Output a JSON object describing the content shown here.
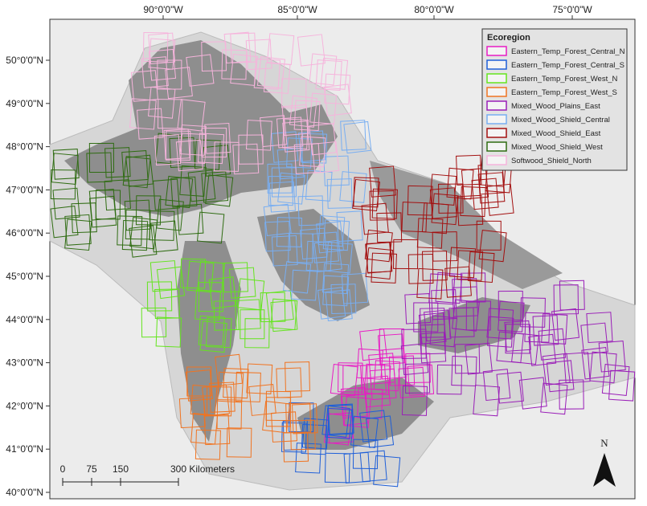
{
  "map": {
    "longitude_labels": [
      "90°0'0\"W",
      "85°0'0\"W",
      "80°0'0\"W",
      "75°0'0\"W"
    ],
    "latitude_labels": [
      "50°0'0\"N",
      "49°0'0\"N",
      "48°0'0\"N",
      "47°0'0\"N",
      "46°0'0\"N",
      "45°0'0\"N",
      "44°0'0\"N",
      "43°0'0\"N",
      "42°0'0\"N",
      "41°0'0\"N",
      "40°0'0\"N"
    ],
    "legend": {
      "title": "Ecoregion",
      "items": [
        {
          "name": "Eastern_Temp_Forest_Central_N",
          "color": "#e81cc4"
        },
        {
          "name": "Eastern_Temp_Forest_Central_S",
          "color": "#1f5fd8"
        },
        {
          "name": "Eastern_Temp_Forest_West_N",
          "color": "#64e41e"
        },
        {
          "name": "Eastern_Temp_Forest_West_S",
          "color": "#f07422"
        },
        {
          "name": "Mixed_Wood_Plains_East",
          "color": "#9a1eb8"
        },
        {
          "name": "Mixed_Wood_Shield_Central",
          "color": "#78aef2"
        },
        {
          "name": "Mixed_Wood_Shield_East",
          "color": "#a31010"
        },
        {
          "name": "Mixed_Wood_Shield_West",
          "color": "#2f6c12"
        },
        {
          "name": "Softwood_Shield_North",
          "color": "#f6b4dc"
        }
      ]
    },
    "scale_bar": {
      "labels": [
        "0",
        "75",
        "150",
        "300 Kilometers"
      ]
    },
    "north_arrow": "N"
  }
}
